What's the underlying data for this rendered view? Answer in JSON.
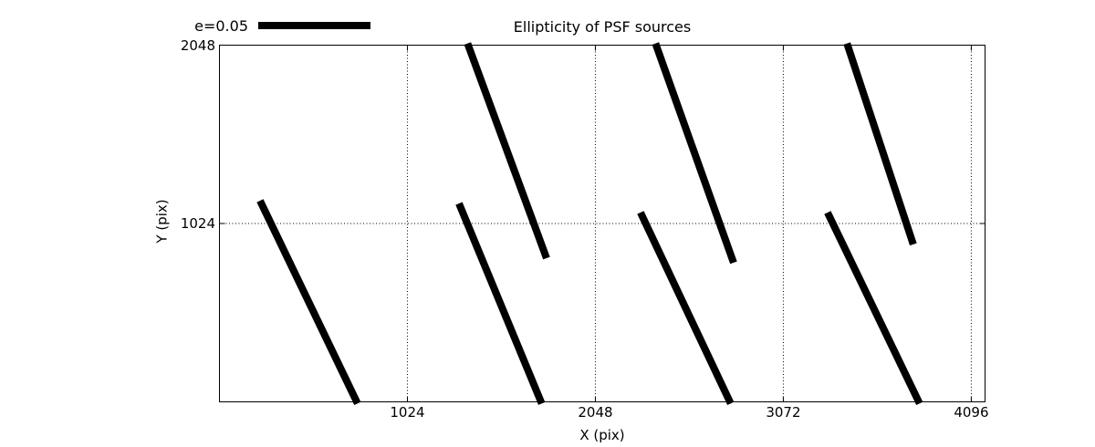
{
  "title": "Ellipticity of PSF sources",
  "colors": {
    "foreground": "#000000",
    "background": "#ffffff",
    "grid": "#000000",
    "whisker": "#000000"
  },
  "legend": {
    "label": "e=0.05",
    "e_value": 0.05
  },
  "chart_data": {
    "type": "line",
    "subtype": "ellipticity-whisker-map",
    "title": "Ellipticity of PSF sources",
    "xlabel": "X (pix)",
    "ylabel": "Y (pix)",
    "xlim": [
      0,
      4171
    ],
    "ylim": [
      0,
      2048
    ],
    "x_ticks": [
      1024,
      2048,
      3072,
      4096
    ],
    "y_ticks": [
      1024,
      2048
    ],
    "grid": "dotted",
    "legend": {
      "label": "e=0.05",
      "e_value": 0.05,
      "position": "upper-left-outside"
    },
    "whiskers": [
      {
        "x1": 1355,
        "y1": 2048,
        "x2": 1782,
        "y2": 825
      },
      {
        "x1": 2379,
        "y1": 2048,
        "x2": 2801,
        "y2": 799
      },
      {
        "x1": 3422,
        "y1": 2048,
        "x2": 3780,
        "y2": 904
      },
      {
        "x1": 221,
        "y1": 1155,
        "x2": 748,
        "y2": 0
      },
      {
        "x1": 1305,
        "y1": 1139,
        "x2": 1752,
        "y2": 0
      },
      {
        "x1": 2294,
        "y1": 1087,
        "x2": 2781,
        "y2": 0
      },
      {
        "x1": 3313,
        "y1": 1087,
        "x2": 3810,
        "y2": 0
      }
    ]
  }
}
